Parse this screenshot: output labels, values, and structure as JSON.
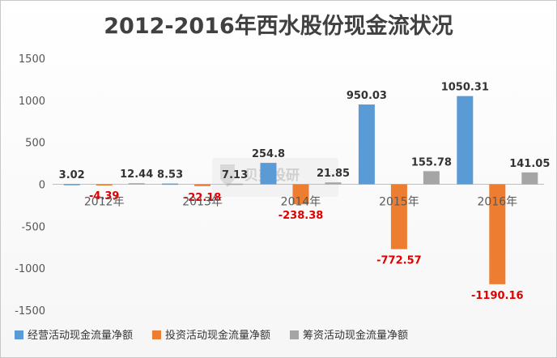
{
  "chart_data": {
    "type": "bar",
    "title": "2012-2016年西水股份现金流状况",
    "categories": [
      "2012年",
      "2013年",
      "2014年",
      "2015年",
      "2016年"
    ],
    "series": [
      {
        "name": "经营活动现金流量净额",
        "color": "#5b9bd5",
        "values": [
          3.02,
          8.53,
          254.8,
          950.03,
          1050.31
        ],
        "labels": [
          "3.02",
          "8.53",
          "254.8",
          "950.03",
          "1050.31"
        ]
      },
      {
        "name": "投资活动现金流量净额",
        "color": "#ed7d31",
        "values": [
          -4.39,
          -22.18,
          -238.38,
          -772.57,
          -1190.16
        ],
        "labels": [
          "-4.39",
          "-22.18",
          "-238.38",
          "-772.57",
          "-1190.16"
        ]
      },
      {
        "name": "筹资活动现金流量净额",
        "color": "#a5a5a5",
        "values": [
          12.44,
          7.13,
          21.85,
          155.78,
          141.05
        ],
        "labels": [
          "12.44",
          "7.13",
          "21.85",
          "155.78",
          "141.05"
        ]
      }
    ],
    "yticks": [
      "1500",
      "1000",
      "500",
      "0",
      "-500",
      "-1000",
      "-1500"
    ],
    "ylim": [
      -1500,
      1500
    ],
    "legend_position": "bottom",
    "negative_label_color": "#e00000"
  },
  "watermark": "贝弗投研"
}
